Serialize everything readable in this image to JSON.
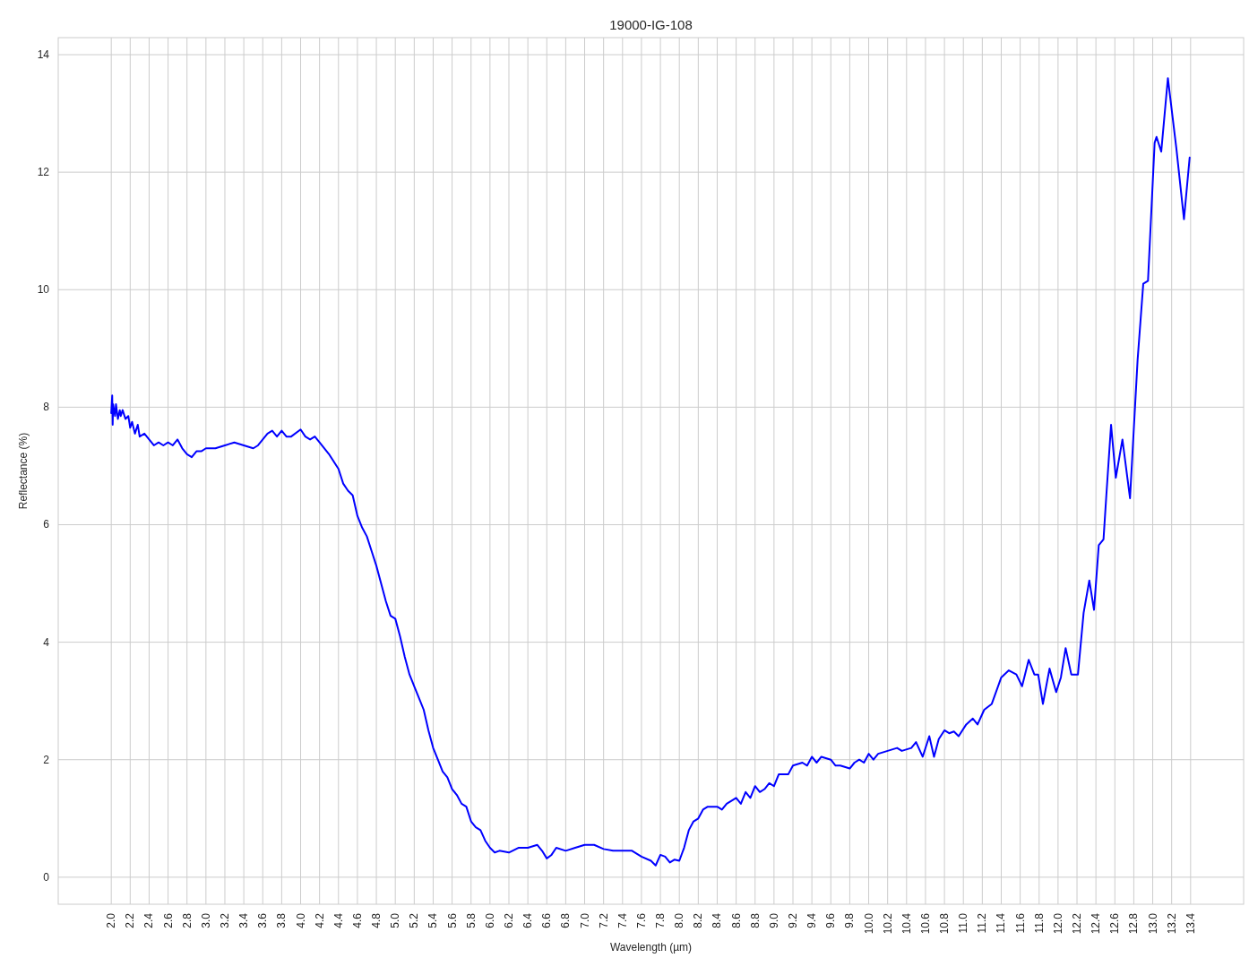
{
  "chart_data": {
    "type": "line",
    "title": "19000-IG-108",
    "xlabel": "Wavelength (µm)",
    "ylabel": "Reflectance (%)",
    "xlim": [
      1.44,
      13.96
    ],
    "ylim": [
      -0.46,
      14.29
    ],
    "xticks": [
      {
        "value": 2,
        "label": "2.0"
      },
      2.2,
      2.4,
      2.6,
      2.8,
      {
        "value": 3,
        "label": "3.0"
      },
      3.2,
      3.4,
      3.6,
      3.8,
      {
        "value": 4,
        "label": "4.0"
      },
      4.2,
      4.4,
      4.6,
      4.8,
      {
        "value": 5,
        "label": "5.0"
      },
      5.2,
      5.4,
      5.6,
      5.8,
      {
        "value": 6,
        "label": "6.0"
      },
      6.2,
      6.4,
      6.6,
      6.8,
      {
        "value": 7,
        "label": "7.0"
      },
      7.2,
      7.4,
      7.6,
      7.8,
      {
        "value": 8,
        "label": "8.0"
      },
      8.2,
      8.4,
      8.6,
      8.8,
      {
        "value": 9,
        "label": "9.0"
      },
      9.2,
      9.4,
      9.6,
      9.8,
      {
        "value": 10,
        "label": "10.0"
      },
      10.2,
      10.4,
      10.6,
      10.8,
      {
        "value": 11,
        "label": "11.0"
      },
      11.2,
      11.4,
      11.6,
      11.8,
      {
        "value": 12,
        "label": "12.0"
      },
      12.2,
      12.4,
      12.6,
      12.8,
      {
        "value": 13,
        "label": "13.0"
      },
      13.2,
      13.4
    ],
    "yticks": [
      0,
      2,
      4,
      6,
      8,
      10,
      12,
      14
    ],
    "grid": true,
    "line_style": "solid",
    "marker": "none",
    "series": [
      {
        "color": "#0000ff",
        "x": [
          2.0,
          2.01,
          2.015,
          2.02,
          2.04,
          2.05,
          2.07,
          2.09,
          2.1,
          2.12,
          2.15,
          2.18,
          2.2,
          2.22,
          2.25,
          2.28,
          2.3,
          2.35,
          2.4,
          2.45,
          2.5,
          2.55,
          2.6,
          2.65,
          2.7,
          2.75,
          2.8,
          2.85,
          2.9,
          2.95,
          3.0,
          3.1,
          3.2,
          3.3,
          3.4,
          3.5,
          3.55,
          3.6,
          3.65,
          3.7,
          3.75,
          3.8,
          3.85,
          3.9,
          4.0,
          4.05,
          4.1,
          4.15,
          4.2,
          4.3,
          4.4,
          4.45,
          4.5,
          4.55,
          4.6,
          4.65,
          4.7,
          4.75,
          4.8,
          4.85,
          4.9,
          4.95,
          5.0,
          5.05,
          5.1,
          5.15,
          5.2,
          5.25,
          5.3,
          5.35,
          5.4,
          5.45,
          5.5,
          5.55,
          5.6,
          5.65,
          5.7,
          5.75,
          5.8,
          5.85,
          5.9,
          5.95,
          6.0,
          6.05,
          6.1,
          6.2,
          6.3,
          6.4,
          6.5,
          6.55,
          6.6,
          6.65,
          6.7,
          6.8,
          6.9,
          7.0,
          7.1,
          7.2,
          7.3,
          7.4,
          7.5,
          7.6,
          7.7,
          7.75,
          7.8,
          7.85,
          7.9,
          7.95,
          8.0,
          8.05,
          8.1,
          8.15,
          8.2,
          8.25,
          8.3,
          8.4,
          8.45,
          8.5,
          8.6,
          8.65,
          8.7,
          8.75,
          8.8,
          8.85,
          8.9,
          8.95,
          9.0,
          9.05,
          9.15,
          9.2,
          9.3,
          9.35,
          9.4,
          9.45,
          9.5,
          9.6,
          9.65,
          9.7,
          9.8,
          9.85,
          9.9,
          9.95,
          10.0,
          10.05,
          10.1,
          10.2,
          10.3,
          10.35,
          10.45,
          10.5,
          10.57,
          10.64,
          10.69,
          10.74,
          10.8,
          10.85,
          10.9,
          10.95,
          11.03,
          11.1,
          11.15,
          11.22,
          11.3,
          11.4,
          11.48,
          11.56,
          11.62,
          11.69,
          11.75,
          11.79,
          11.84,
          11.91,
          11.98,
          12.03,
          12.08,
          12.14,
          12.21,
          12.27,
          12.33,
          12.38,
          12.43,
          12.48,
          12.51,
          12.56,
          12.61,
          12.68,
          12.76,
          12.84,
          12.9,
          12.95,
          13.02,
          13.04,
          13.09,
          13.16,
          13.25,
          13.33,
          13.39
        ],
        "values": [
          7.9,
          8.2,
          7.7,
          8.05,
          7.85,
          8.05,
          7.8,
          7.95,
          7.85,
          7.95,
          7.8,
          7.85,
          7.65,
          7.75,
          7.55,
          7.7,
          7.5,
          7.55,
          7.45,
          7.35,
          7.4,
          7.35,
          7.4,
          7.35,
          7.45,
          7.3,
          7.2,
          7.15,
          7.25,
          7.25,
          7.3,
          7.3,
          7.35,
          7.4,
          7.35,
          7.3,
          7.35,
          7.45,
          7.55,
          7.6,
          7.5,
          7.6,
          7.5,
          7.5,
          7.62,
          7.5,
          7.45,
          7.5,
          7.4,
          7.2,
          6.95,
          6.7,
          6.58,
          6.5,
          6.15,
          5.95,
          5.8,
          5.55,
          5.3,
          5.0,
          4.7,
          4.45,
          4.4,
          4.1,
          3.75,
          3.45,
          3.25,
          3.05,
          2.85,
          2.5,
          2.2,
          2.0,
          1.8,
          1.7,
          1.5,
          1.4,
          1.25,
          1.2,
          0.95,
          0.85,
          0.8,
          0.62,
          0.5,
          0.42,
          0.45,
          0.42,
          0.5,
          0.5,
          0.55,
          0.45,
          0.32,
          0.38,
          0.5,
          0.45,
          0.5,
          0.55,
          0.55,
          0.48,
          0.45,
          0.45,
          0.45,
          0.35,
          0.28,
          0.2,
          0.38,
          0.35,
          0.25,
          0.3,
          0.28,
          0.5,
          0.8,
          0.95,
          1.0,
          1.15,
          1.2,
          1.2,
          1.15,
          1.25,
          1.35,
          1.25,
          1.45,
          1.35,
          1.55,
          1.45,
          1.5,
          1.6,
          1.55,
          1.75,
          1.75,
          1.9,
          1.95,
          1.9,
          2.05,
          1.95,
          2.05,
          2.0,
          1.9,
          1.9,
          1.85,
          1.95,
          2.0,
          1.95,
          2.1,
          2.0,
          2.1,
          2.15,
          2.2,
          2.15,
          2.2,
          2.3,
          2.05,
          2.4,
          2.05,
          2.35,
          2.5,
          2.45,
          2.48,
          2.4,
          2.6,
          2.7,
          2.6,
          2.85,
          2.95,
          3.4,
          3.52,
          3.45,
          3.25,
          3.7,
          3.45,
          3.45,
          2.95,
          3.55,
          3.15,
          3.4,
          3.9,
          3.45,
          3.45,
          4.5,
          5.05,
          4.55,
          5.65,
          5.75,
          6.5,
          7.7,
          6.8,
          7.45,
          6.45,
          8.8,
          10.1,
          10.15,
          12.5,
          12.6,
          12.35,
          13.6,
          12.4,
          11.2,
          12.25
        ]
      }
    ]
  }
}
